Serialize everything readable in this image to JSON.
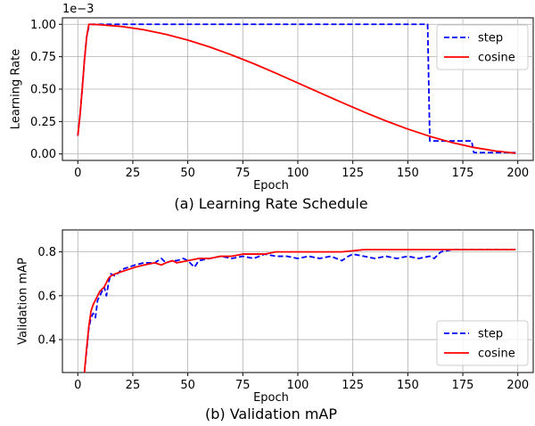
{
  "chart_data": [
    {
      "type": "line",
      "caption": "(a) Learning Rate Schedule",
      "xlabel": "Epoch",
      "ylabel": "Learning Rate",
      "y_offset_text": "1e−3",
      "xlim": [
        -7,
        207
      ],
      "ylim": [
        -0.05,
        1.05
      ],
      "xticks": [
        0,
        25,
        50,
        75,
        100,
        125,
        150,
        175,
        200
      ],
      "yticks": [
        0.0,
        0.25,
        0.5,
        0.75,
        1.0
      ],
      "ytick_labels": [
        "0.00",
        "0.25",
        "0.50",
        "0.75",
        "1.00"
      ],
      "grid": true,
      "legend_position": "top-right",
      "series": [
        {
          "name": "step",
          "color": "#0000ff",
          "style": "dashed",
          "x": [
            0,
            1,
            2,
            3,
            4,
            5,
            6,
            10,
            20,
            40,
            80,
            120,
            159,
            160,
            161,
            175,
            179,
            180,
            181,
            199
          ],
          "y": [
            0.14,
            0.3,
            0.5,
            0.72,
            0.9,
            0.98,
            1.0,
            1.0,
            1.0,
            1.0,
            1.0,
            1.0,
            1.0,
            0.1,
            0.1,
            0.1,
            0.1,
            0.01,
            0.01,
            0.01
          ]
        },
        {
          "name": "cosine",
          "color": "#ff0000",
          "style": "solid",
          "x": [
            0,
            1,
            2,
            3,
            4,
            5,
            10,
            20,
            30,
            40,
            50,
            60,
            70,
            80,
            90,
            100,
            110,
            120,
            130,
            140,
            150,
            160,
            170,
            180,
            190,
            199
          ],
          "y": [
            0.14,
            0.3,
            0.5,
            0.72,
            0.9,
            1.0,
            0.997,
            0.983,
            0.958,
            0.923,
            0.878,
            0.825,
            0.763,
            0.696,
            0.623,
            0.548,
            0.472,
            0.397,
            0.324,
            0.255,
            0.192,
            0.136,
            0.088,
            0.05,
            0.022,
            0.006
          ]
        }
      ]
    },
    {
      "type": "line",
      "caption": "(b) Validation mAP",
      "xlabel": "Epoch",
      "ylabel": "Validation mAP",
      "xlim": [
        -7,
        207
      ],
      "ylim": [
        0.25,
        0.9
      ],
      "xticks": [
        0,
        25,
        50,
        75,
        100,
        125,
        150,
        175,
        200
      ],
      "yticks": [
        0.4,
        0.6,
        0.8
      ],
      "ytick_labels": [
        "0.4",
        "0.6",
        "0.8"
      ],
      "grid": true,
      "legend_position": "lower-right",
      "series": [
        {
          "name": "step",
          "color": "#0000ff",
          "style": "dashed",
          "x": [
            3,
            4,
            5,
            6,
            7,
            8,
            9,
            10,
            11,
            12,
            13,
            14,
            15,
            17,
            20,
            23,
            26,
            30,
            35,
            38,
            40,
            43,
            45,
            48,
            50,
            53,
            55,
            60,
            65,
            70,
            75,
            80,
            85,
            90,
            95,
            100,
            105,
            110,
            115,
            120,
            123,
            125,
            130,
            135,
            140,
            145,
            150,
            155,
            160,
            162,
            165,
            170,
            175,
            180,
            185,
            190,
            195,
            199
          ],
          "y": [
            0.25,
            0.35,
            0.45,
            0.5,
            0.52,
            0.5,
            0.58,
            0.6,
            0.62,
            0.64,
            0.6,
            0.66,
            0.7,
            0.69,
            0.72,
            0.73,
            0.74,
            0.75,
            0.75,
            0.77,
            0.75,
            0.76,
            0.76,
            0.77,
            0.76,
            0.73,
            0.76,
            0.77,
            0.78,
            0.77,
            0.78,
            0.77,
            0.79,
            0.78,
            0.78,
            0.77,
            0.78,
            0.77,
            0.78,
            0.76,
            0.78,
            0.79,
            0.78,
            0.77,
            0.78,
            0.77,
            0.78,
            0.77,
            0.78,
            0.77,
            0.8,
            0.81,
            0.81,
            0.81,
            0.81,
            0.81,
            0.81,
            0.81
          ]
        },
        {
          "name": "cosine",
          "color": "#ff0000",
          "style": "solid",
          "x": [
            3,
            4,
            5,
            6,
            7,
            8,
            9,
            10,
            11,
            12,
            13,
            14,
            15,
            17,
            20,
            23,
            26,
            30,
            35,
            38,
            40,
            43,
            45,
            50,
            55,
            60,
            65,
            70,
            75,
            80,
            85,
            90,
            95,
            100,
            110,
            120,
            130,
            140,
            150,
            160,
            170,
            180,
            190,
            199
          ],
          "y": [
            0.25,
            0.36,
            0.46,
            0.53,
            0.56,
            0.58,
            0.6,
            0.62,
            0.63,
            0.64,
            0.66,
            0.68,
            0.69,
            0.7,
            0.71,
            0.72,
            0.73,
            0.74,
            0.75,
            0.74,
            0.75,
            0.76,
            0.75,
            0.76,
            0.77,
            0.77,
            0.78,
            0.78,
            0.79,
            0.79,
            0.79,
            0.8,
            0.8,
            0.8,
            0.8,
            0.8,
            0.81,
            0.81,
            0.81,
            0.81,
            0.81,
            0.81,
            0.81,
            0.81
          ]
        }
      ]
    }
  ]
}
